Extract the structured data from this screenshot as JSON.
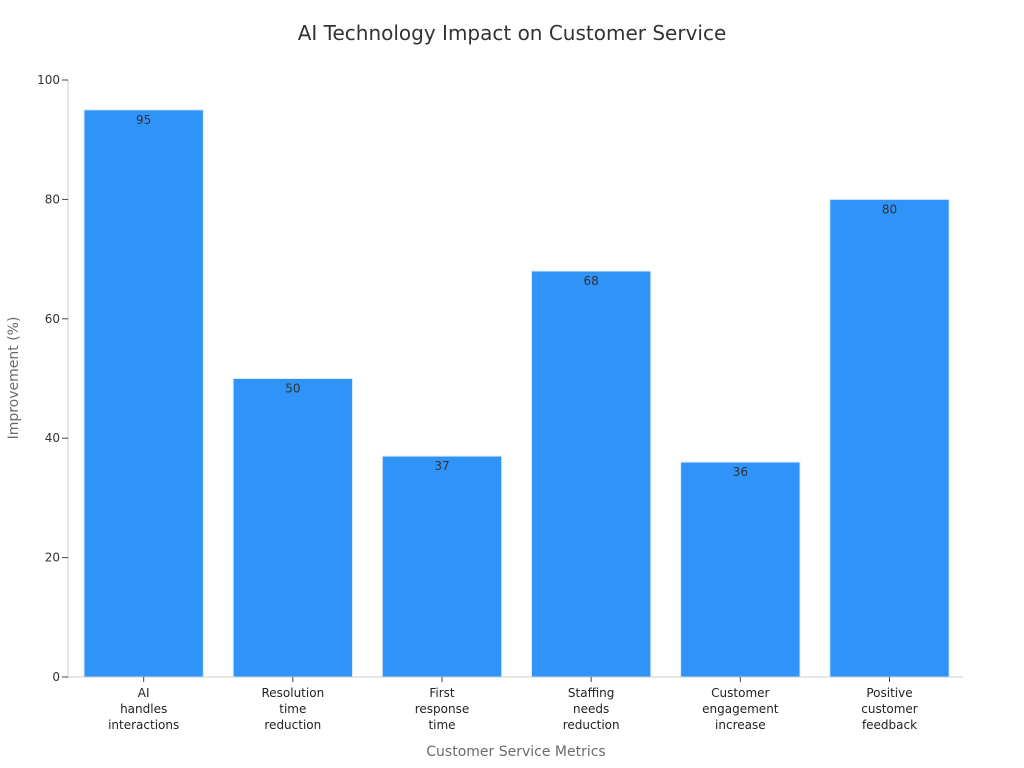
{
  "chart_data": {
    "type": "bar",
    "title": "AI Technology Impact on Customer Service",
    "xlabel": "Customer Service Metrics",
    "ylabel": "Improvement (%)",
    "categories": [
      [
        "AI",
        "handles",
        "interactions"
      ],
      [
        "Resolution",
        "time",
        "reduction"
      ],
      [
        "First",
        "response",
        "time"
      ],
      [
        "Staffing",
        "needs",
        "reduction"
      ],
      [
        "Customer",
        "engagement",
        "increase"
      ],
      [
        "Positive",
        "customer",
        "feedback"
      ]
    ],
    "values": [
      95,
      50,
      37,
      68,
      36,
      80
    ],
    "ylim": [
      0,
      100
    ],
    "yticks": [
      0,
      20,
      40,
      60,
      80,
      100
    ],
    "grid": false,
    "bar_color": "#2f93f7"
  }
}
